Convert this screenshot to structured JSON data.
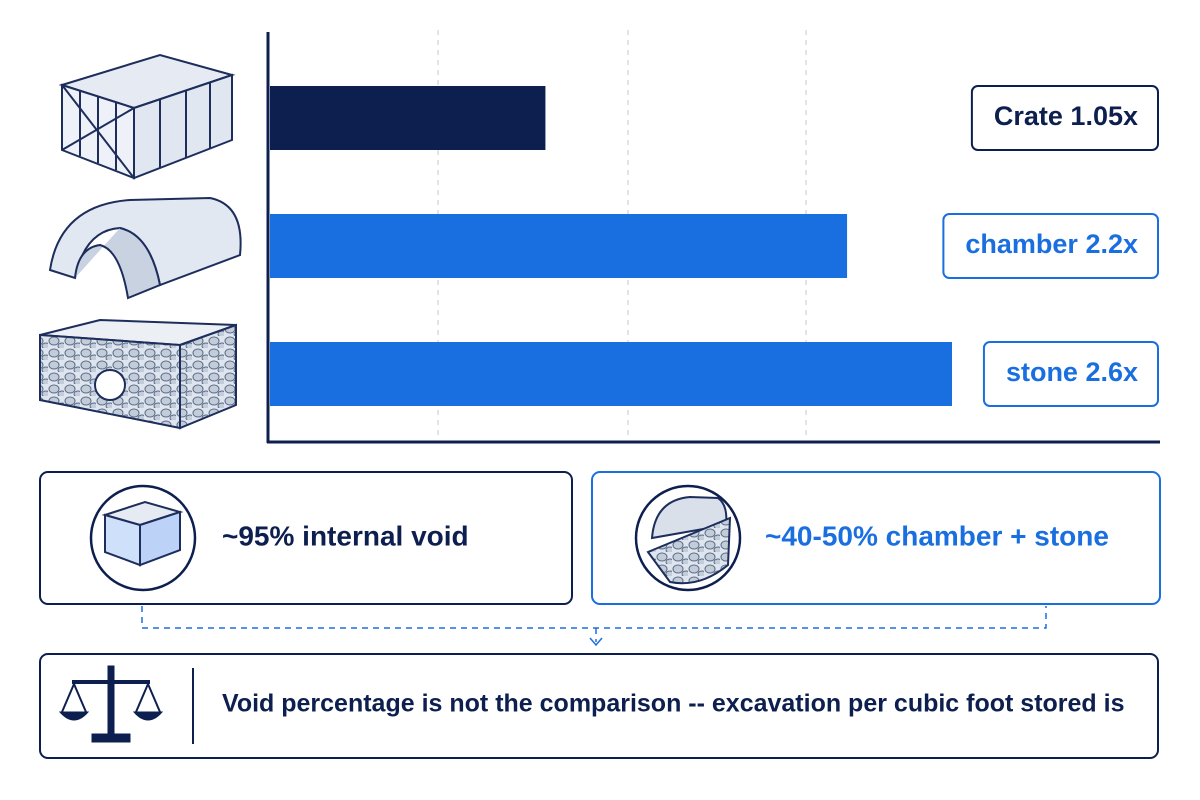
{
  "chart_data": {
    "type": "hbar",
    "values": [
      1.05,
      2.2,
      2.6
    ],
    "value_labels": [
      "Crate 1.05x",
      "chamber 2.2x",
      "stone 2.6x"
    ],
    "colors": [
      "#0d1f4f",
      "#1a6fe0",
      "#1a6fe0"
    ],
    "xlim": [
      0,
      2.6
    ]
  },
  "panels": {
    "left": "~95% internal void",
    "right": "~40-50% chamber + stone",
    "conclusion": "Void percentage is not the comparison -- excavation per cubic foot stored is"
  }
}
